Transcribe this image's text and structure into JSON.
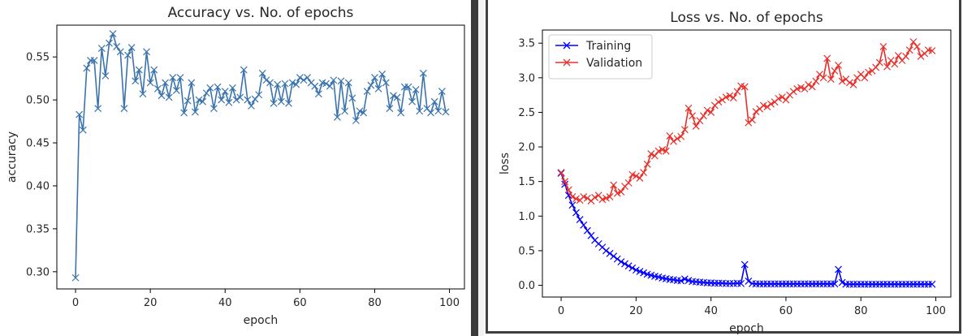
{
  "chart_data": [
    {
      "type": "line",
      "title": "Accuracy vs. No. of epochs",
      "xlabel": "epoch",
      "ylabel": "accuracy",
      "xlim": [
        -5,
        104
      ],
      "ylim": [
        0.28,
        0.587
      ],
      "xticks": [
        0,
        20,
        40,
        60,
        80,
        100
      ],
      "yticks": [
        0.3,
        0.35,
        0.4,
        0.45,
        0.5,
        0.55
      ],
      "ytick_labels": [
        "0.30",
        "0.35",
        "0.40",
        "0.45",
        "0.50",
        "0.55"
      ],
      "grid": false,
      "marker": "x",
      "series": [
        {
          "color": "#3a73ad",
          "values": [
            0.293,
            0.483,
            0.465,
            0.537,
            0.546,
            0.546,
            0.49,
            0.56,
            0.528,
            0.566,
            0.577,
            0.562,
            0.556,
            0.49,
            0.552,
            0.561,
            0.522,
            0.535,
            0.507,
            0.556,
            0.52,
            0.535,
            0.513,
            0.505,
            0.52,
            0.503,
            0.526,
            0.511,
            0.526,
            0.485,
            0.499,
            0.52,
            0.486,
            0.5,
            0.498,
            0.508,
            0.514,
            0.49,
            0.515,
            0.5,
            0.51,
            0.497,
            0.514,
            0.5,
            0.503,
            0.535,
            0.5,
            0.493,
            0.501,
            0.506,
            0.531,
            0.523,
            0.52,
            0.496,
            0.518,
            0.498,
            0.519,
            0.496,
            0.52,
            0.518,
            0.526,
            0.523,
            0.526,
            0.52,
            0.516,
            0.507,
            0.52,
            0.519,
            0.516,
            0.523,
            0.48,
            0.522,
            0.487,
            0.52,
            0.502,
            0.476,
            0.487,
            0.485,
            0.51,
            0.517,
            0.526,
            0.513,
            0.53,
            0.52,
            0.49,
            0.505,
            0.503,
            0.485,
            0.515,
            0.515,
            0.498,
            0.512,
            0.487,
            0.531,
            0.49,
            0.485,
            0.498,
            0.487,
            0.51,
            0.486
          ]
        }
      ]
    },
    {
      "type": "line",
      "title": "Loss vs. No. of epochs",
      "xlabel": "epoch",
      "ylabel": "loss",
      "xlim": [
        -5,
        104
      ],
      "ylim": [
        -0.17,
        3.69
      ],
      "xticks": [
        0,
        20,
        40,
        60,
        80,
        100
      ],
      "yticks": [
        0.0,
        0.5,
        1.0,
        1.5,
        2.0,
        2.5,
        3.0,
        3.5
      ],
      "ytick_labels": [
        "0.0",
        "0.5",
        "1.0",
        "1.5",
        "2.0",
        "2.5",
        "3.0",
        "3.5"
      ],
      "grid": false,
      "marker": "x",
      "legend_position": "top-left",
      "series": [
        {
          "name": "Training",
          "color": "#0000ff",
          "values": [
            1.62,
            1.46,
            1.3,
            1.16,
            1.05,
            0.95,
            0.87,
            0.79,
            0.72,
            0.65,
            0.6,
            0.55,
            0.5,
            0.46,
            0.42,
            0.38,
            0.34,
            0.31,
            0.28,
            0.25,
            0.22,
            0.2,
            0.18,
            0.16,
            0.145,
            0.13,
            0.12,
            0.105,
            0.095,
            0.085,
            0.08,
            0.07,
            0.065,
            0.09,
            0.07,
            0.055,
            0.05,
            0.045,
            0.04,
            0.035,
            0.035,
            0.03,
            0.03,
            0.03,
            0.025,
            0.025,
            0.025,
            0.03,
            0.025,
            0.3,
            0.06,
            0.025,
            0.02,
            0.02,
            0.02,
            0.02,
            0.02,
            0.02,
            0.02,
            0.02,
            0.02,
            0.02,
            0.02,
            0.02,
            0.02,
            0.02,
            0.02,
            0.02,
            0.02,
            0.02,
            0.02,
            0.02,
            0.02,
            0.02,
            0.23,
            0.04,
            0.015,
            0.015,
            0.015,
            0.015,
            0.015,
            0.015,
            0.015,
            0.015,
            0.015,
            0.015,
            0.015,
            0.015,
            0.015,
            0.015,
            0.015,
            0.015,
            0.015,
            0.015,
            0.015,
            0.015,
            0.015,
            0.015,
            0.015,
            0.015
          ]
        },
        {
          "name": "Validation",
          "color": "#e8302b",
          "values": [
            1.63,
            1.5,
            1.38,
            1.28,
            1.25,
            1.23,
            1.28,
            1.26,
            1.22,
            1.27,
            1.3,
            1.24,
            1.26,
            1.28,
            1.45,
            1.33,
            1.35,
            1.43,
            1.48,
            1.6,
            1.58,
            1.55,
            1.63,
            1.75,
            1.9,
            1.87,
            1.94,
            1.96,
            1.94,
            2.16,
            2.08,
            2.12,
            2.15,
            2.25,
            2.56,
            2.45,
            2.3,
            2.38,
            2.45,
            2.53,
            2.5,
            2.6,
            2.65,
            2.68,
            2.72,
            2.74,
            2.71,
            2.8,
            2.88,
            2.87,
            2.35,
            2.39,
            2.51,
            2.55,
            2.6,
            2.58,
            2.62,
            2.65,
            2.7,
            2.72,
            2.68,
            2.75,
            2.8,
            2.84,
            2.86,
            2.84,
            2.9,
            2.87,
            2.95,
            3.05,
            3.0,
            3.28,
            2.98,
            3.1,
            3.18,
            2.95,
            2.98,
            2.93,
            2.9,
            3.0,
            3.05,
            3.0,
            3.08,
            3.1,
            3.15,
            3.22,
            3.45,
            3.16,
            3.25,
            3.2,
            3.32,
            3.25,
            3.31,
            3.4,
            3.52,
            3.45,
            3.31,
            3.35,
            3.4,
            3.39
          ]
        }
      ]
    }
  ]
}
